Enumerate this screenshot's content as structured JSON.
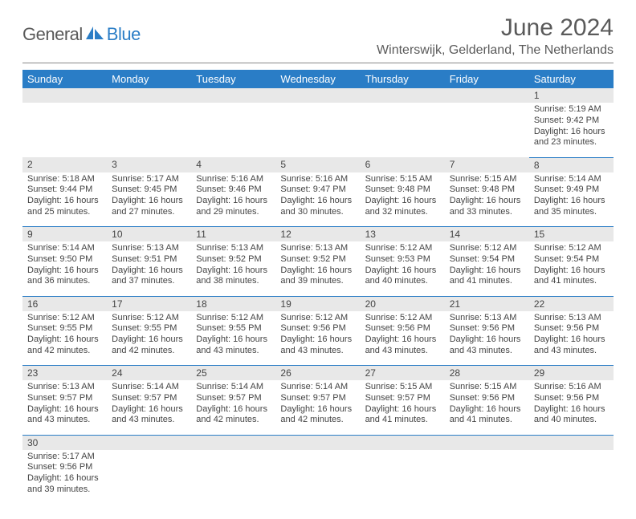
{
  "brand": {
    "part1": "General",
    "part2": "Blue"
  },
  "title": "June 2024",
  "location": "Winterswijk, Gelderland, The Netherlands",
  "colors": {
    "header_bg": "#2a7dc6",
    "header_fg": "#ffffff",
    "daynum_bg": "#e8e8e8",
    "text": "#444444",
    "border": "#2a7dc6",
    "logo_gray": "#5a5a5a",
    "logo_blue": "#2a7dc6"
  },
  "weekdays": [
    "Sunday",
    "Monday",
    "Tuesday",
    "Wednesday",
    "Thursday",
    "Friday",
    "Saturday"
  ],
  "weeks": [
    [
      null,
      null,
      null,
      null,
      null,
      null,
      {
        "n": "1",
        "sunrise": "5:19 AM",
        "sunset": "9:42 PM",
        "dh": "16",
        "dm": "23"
      }
    ],
    [
      {
        "n": "2",
        "sunrise": "5:18 AM",
        "sunset": "9:44 PM",
        "dh": "16",
        "dm": "25"
      },
      {
        "n": "3",
        "sunrise": "5:17 AM",
        "sunset": "9:45 PM",
        "dh": "16",
        "dm": "27"
      },
      {
        "n": "4",
        "sunrise": "5:16 AM",
        "sunset": "9:46 PM",
        "dh": "16",
        "dm": "29"
      },
      {
        "n": "5",
        "sunrise": "5:16 AM",
        "sunset": "9:47 PM",
        "dh": "16",
        "dm": "30"
      },
      {
        "n": "6",
        "sunrise": "5:15 AM",
        "sunset": "9:48 PM",
        "dh": "16",
        "dm": "32"
      },
      {
        "n": "7",
        "sunrise": "5:15 AM",
        "sunset": "9:48 PM",
        "dh": "16",
        "dm": "33"
      },
      {
        "n": "8",
        "sunrise": "5:14 AM",
        "sunset": "9:49 PM",
        "dh": "16",
        "dm": "35"
      }
    ],
    [
      {
        "n": "9",
        "sunrise": "5:14 AM",
        "sunset": "9:50 PM",
        "dh": "16",
        "dm": "36"
      },
      {
        "n": "10",
        "sunrise": "5:13 AM",
        "sunset": "9:51 PM",
        "dh": "16",
        "dm": "37"
      },
      {
        "n": "11",
        "sunrise": "5:13 AM",
        "sunset": "9:52 PM",
        "dh": "16",
        "dm": "38"
      },
      {
        "n": "12",
        "sunrise": "5:13 AM",
        "sunset": "9:52 PM",
        "dh": "16",
        "dm": "39"
      },
      {
        "n": "13",
        "sunrise": "5:12 AM",
        "sunset": "9:53 PM",
        "dh": "16",
        "dm": "40"
      },
      {
        "n": "14",
        "sunrise": "5:12 AM",
        "sunset": "9:54 PM",
        "dh": "16",
        "dm": "41"
      },
      {
        "n": "15",
        "sunrise": "5:12 AM",
        "sunset": "9:54 PM",
        "dh": "16",
        "dm": "41"
      }
    ],
    [
      {
        "n": "16",
        "sunrise": "5:12 AM",
        "sunset": "9:55 PM",
        "dh": "16",
        "dm": "42"
      },
      {
        "n": "17",
        "sunrise": "5:12 AM",
        "sunset": "9:55 PM",
        "dh": "16",
        "dm": "42"
      },
      {
        "n": "18",
        "sunrise": "5:12 AM",
        "sunset": "9:55 PM",
        "dh": "16",
        "dm": "43"
      },
      {
        "n": "19",
        "sunrise": "5:12 AM",
        "sunset": "9:56 PM",
        "dh": "16",
        "dm": "43"
      },
      {
        "n": "20",
        "sunrise": "5:12 AM",
        "sunset": "9:56 PM",
        "dh": "16",
        "dm": "43"
      },
      {
        "n": "21",
        "sunrise": "5:13 AM",
        "sunset": "9:56 PM",
        "dh": "16",
        "dm": "43"
      },
      {
        "n": "22",
        "sunrise": "5:13 AM",
        "sunset": "9:56 PM",
        "dh": "16",
        "dm": "43"
      }
    ],
    [
      {
        "n": "23",
        "sunrise": "5:13 AM",
        "sunset": "9:57 PM",
        "dh": "16",
        "dm": "43"
      },
      {
        "n": "24",
        "sunrise": "5:14 AM",
        "sunset": "9:57 PM",
        "dh": "16",
        "dm": "43"
      },
      {
        "n": "25",
        "sunrise": "5:14 AM",
        "sunset": "9:57 PM",
        "dh": "16",
        "dm": "42"
      },
      {
        "n": "26",
        "sunrise": "5:14 AM",
        "sunset": "9:57 PM",
        "dh": "16",
        "dm": "42"
      },
      {
        "n": "27",
        "sunrise": "5:15 AM",
        "sunset": "9:57 PM",
        "dh": "16",
        "dm": "41"
      },
      {
        "n": "28",
        "sunrise": "5:15 AM",
        "sunset": "9:56 PM",
        "dh": "16",
        "dm": "41"
      },
      {
        "n": "29",
        "sunrise": "5:16 AM",
        "sunset": "9:56 PM",
        "dh": "16",
        "dm": "40"
      }
    ],
    [
      {
        "n": "30",
        "sunrise": "5:17 AM",
        "sunset": "9:56 PM",
        "dh": "16",
        "dm": "39"
      },
      null,
      null,
      null,
      null,
      null,
      null
    ]
  ],
  "labels": {
    "sunrise": "Sunrise:",
    "sunset": "Sunset:",
    "daylight_prefix": "Daylight:",
    "hours_word": "hours",
    "and_word": "and",
    "minutes_word": "minutes."
  }
}
